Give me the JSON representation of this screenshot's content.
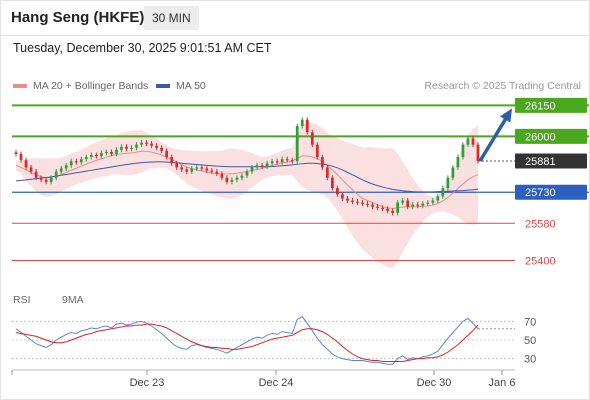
{
  "header": {
    "title": "Hang Seng (HKFE)",
    "interval": "30 MIN",
    "timestamp": "Tuesday, December 30, 2025 9:01:51 AM CET"
  },
  "legend": {
    "ma20_label": "MA 20 + Bollinger Bands",
    "ma50_label": "MA 50",
    "credit": "Research © 2025 Trading Central"
  },
  "rsi_legend": {
    "rsi_label": "RSI",
    "ma9_label": "9MA"
  },
  "colors": {
    "ma20": "#f08a8a",
    "bollinger_band": "#fadadd",
    "ma50": "#3b5ba5",
    "candle_up": "#2e9e3a",
    "candle_down": "#d62b2b",
    "resistance": "#4aa81c",
    "support": "#2d5fc1",
    "lower_level": "#e04545",
    "current_price": "#333333",
    "arrow": "#2d5fa8",
    "rsi": "#5b86d6",
    "rsi_ma9": "#dd2222"
  },
  "chart_data": [
    {
      "type": "candlestick",
      "title": "Hang Seng (HKFE) 30 MIN",
      "x_ticks": [
        "Dec 23",
        "Dec 24",
        "Dec 30",
        "Jan 6"
      ],
      "ylim": [
        25330,
        26200
      ],
      "levels": [
        {
          "value": 26150,
          "label": "26150",
          "kind": "resistance"
        },
        {
          "value": 26000,
          "label": "26000",
          "kind": "resistance"
        },
        {
          "value": 25881,
          "label": "25881",
          "kind": "current"
        },
        {
          "value": 25730,
          "label": "25730",
          "kind": "support"
        },
        {
          "value": 25580,
          "label": "25580",
          "kind": "lower"
        },
        {
          "value": 25400,
          "label": "25400",
          "kind": "lower"
        }
      ],
      "series": [
        {
          "name": "Close",
          "values": [
            25915,
            25885,
            25850,
            25830,
            25800,
            25790,
            25780,
            25800,
            25830,
            25845,
            25860,
            25880,
            25875,
            25890,
            25900,
            25910,
            25905,
            25920,
            25925,
            25915,
            25935,
            25950,
            25940,
            25945,
            25960,
            25970,
            25965,
            25955,
            25945,
            25930,
            25900,
            25870,
            25850,
            25840,
            25830,
            25845,
            25850,
            25845,
            25835,
            25830,
            25820,
            25800,
            25780,
            25790,
            25800,
            25810,
            25830,
            25850,
            25860,
            25855,
            25870,
            25880,
            25875,
            25890,
            25885,
            25880,
            26050,
            26080,
            26020,
            25960,
            25900,
            25850,
            25800,
            25750,
            25720,
            25700,
            25690,
            25685,
            25680,
            25675,
            25670,
            25660,
            25655,
            25650,
            25640,
            25630,
            25680,
            25690,
            25660,
            25670,
            25665,
            25675,
            25680,
            25690,
            25710,
            25750,
            25800,
            25850,
            25900,
            25960,
            25990,
            25960,
            25881
          ]
        },
        {
          "name": "MA 20",
          "values": [
            25860,
            25850,
            25838,
            25826,
            25815,
            25805,
            25800,
            25802,
            25808,
            25815,
            25826,
            25837,
            25846,
            25856,
            25866,
            25876,
            25884,
            25892,
            25900,
            25907,
            25912,
            25916,
            25918,
            25920,
            25924,
            25928,
            25928,
            25924,
            25918,
            25910,
            25900,
            25888,
            25876,
            25864,
            25852,
            25844,
            25838,
            25833,
            25828,
            25824,
            25820,
            25818,
            25818,
            25820,
            25822,
            25826,
            25830,
            25836,
            25840,
            25845,
            25852,
            25860,
            25866,
            25872,
            25876,
            25880,
            25895,
            25905,
            25905,
            25900,
            25892,
            25880,
            25860,
            25838,
            25815,
            25790,
            25765,
            25742,
            25720,
            25700,
            25690,
            25680,
            25670,
            25660,
            25655,
            25652,
            25655,
            25658,
            25660,
            25660,
            25660,
            25662,
            25664,
            25668,
            25675,
            25688,
            25705,
            25725,
            25748,
            25770,
            25790,
            25805,
            25815
          ]
        },
        {
          "name": "MA 50",
          "values": [
            25785,
            25787,
            25790,
            25793,
            25796,
            25799,
            25801,
            25804,
            25808,
            25812,
            25816,
            25820,
            25824,
            25828,
            25832,
            25836,
            25840,
            25844,
            25848,
            25852,
            25856,
            25860,
            25864,
            25867,
            25870,
            25873,
            25875,
            25876,
            25877,
            25877,
            25876,
            25874,
            25872,
            25870,
            25868,
            25866,
            25864,
            25862,
            25860,
            25858,
            25856,
            25855,
            25854,
            25853,
            25853,
            25853,
            25853,
            25853,
            25853,
            25853,
            25853,
            25854,
            25856,
            25858,
            25860,
            25862,
            25865,
            25868,
            25870,
            25870,
            25869,
            25866,
            25862,
            25856,
            25848,
            25838,
            25826,
            25814,
            25802,
            25790,
            25779,
            25770,
            25762,
            25755,
            25749,
            25744,
            25740,
            25737,
            25735,
            25733,
            25732,
            25732,
            25732,
            25732,
            25733,
            25734,
            25735,
            25736,
            25737,
            25738,
            25740,
            25742,
            25745
          ]
        }
      ]
    },
    {
      "type": "line",
      "title": "RSI",
      "ylim": [
        20,
        80
      ],
      "y_ticks": [
        70,
        50,
        30
      ],
      "series": [
        {
          "name": "RSI",
          "values": [
            62,
            58,
            54,
            50,
            46,
            44,
            42,
            45,
            50,
            53,
            56,
            58,
            57,
            60,
            61,
            63,
            62,
            64,
            65,
            63,
            67,
            68,
            66,
            67,
            69,
            70,
            68,
            65,
            61,
            57,
            52,
            47,
            43,
            41,
            40,
            44,
            45,
            44,
            42,
            41,
            40,
            38,
            36,
            39,
            42,
            45,
            48,
            51,
            53,
            52,
            55,
            57,
            56,
            59,
            58,
            57,
            72,
            75,
            68,
            60,
            52,
            45,
            40,
            35,
            32,
            30,
            29,
            28,
            28,
            28,
            27,
            26,
            26,
            25,
            24,
            24,
            30,
            33,
            29,
            31,
            30,
            32,
            33,
            35,
            38,
            45,
            52,
            58,
            64,
            70,
            73,
            68,
            62
          ]
        },
        {
          "name": "9MA",
          "values": [
            58,
            57,
            56,
            55,
            54,
            52,
            50,
            48,
            47,
            47,
            48,
            50,
            52,
            54,
            56,
            57,
            59,
            60,
            61,
            62,
            63,
            64,
            65,
            65,
            66,
            66,
            67,
            67,
            66,
            65,
            63,
            60,
            57,
            54,
            51,
            48,
            46,
            44,
            43,
            42,
            42,
            41,
            41,
            40,
            40,
            41,
            42,
            43,
            45,
            47,
            49,
            51,
            52,
            53,
            54,
            55,
            58,
            61,
            62,
            62,
            61,
            59,
            56,
            52,
            48,
            43,
            39,
            35,
            32,
            30,
            29,
            28,
            28,
            27,
            27,
            27,
            27,
            27,
            28,
            29,
            30,
            30,
            31,
            31,
            32,
            34,
            37,
            41,
            45,
            50,
            55,
            60,
            66
          ]
        }
      ]
    }
  ]
}
